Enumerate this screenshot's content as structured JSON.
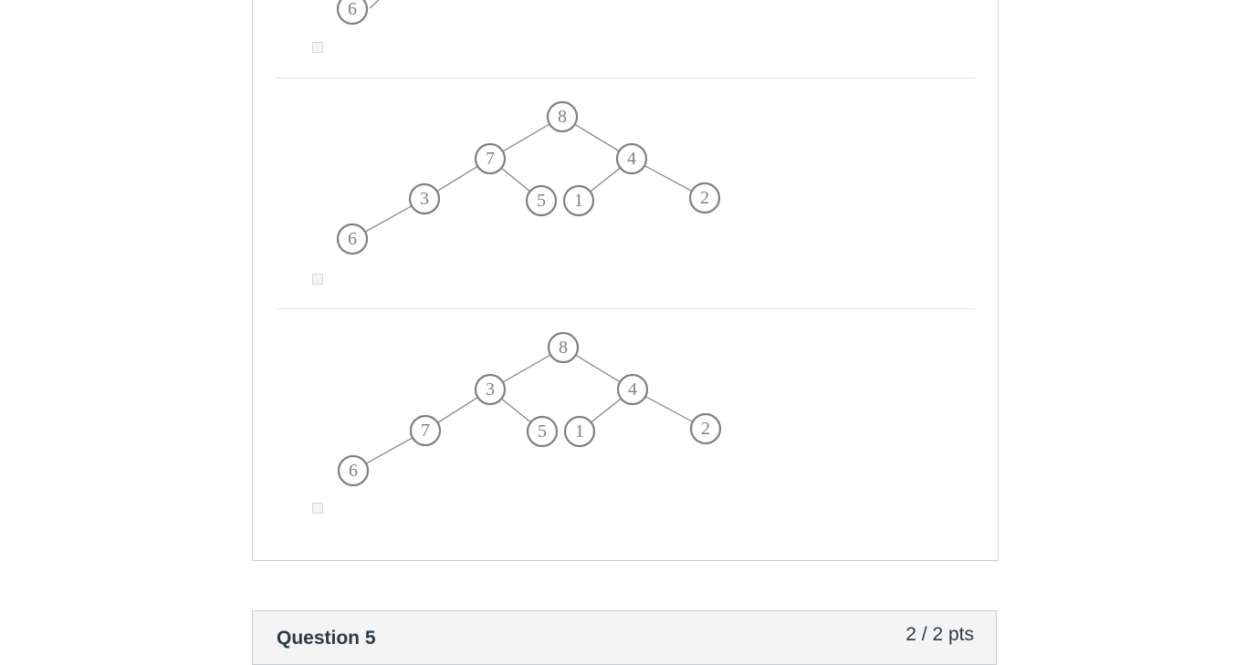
{
  "question4": {
    "options": [
      {
        "nodes": [
          "6"
        ]
      },
      {
        "nodes": [
          "8",
          "7",
          "4",
          "3",
          "5",
          "1",
          "2",
          "6"
        ]
      },
      {
        "nodes": [
          "8",
          "3",
          "4",
          "7",
          "5",
          "1",
          "2",
          "6"
        ]
      }
    ]
  },
  "question5": {
    "title": "Question 5",
    "points": "2 / 2 pts"
  },
  "colors": {
    "node_stroke": "#808080",
    "header_bg": "#f4f4f4",
    "border": "#c7cdd1"
  }
}
